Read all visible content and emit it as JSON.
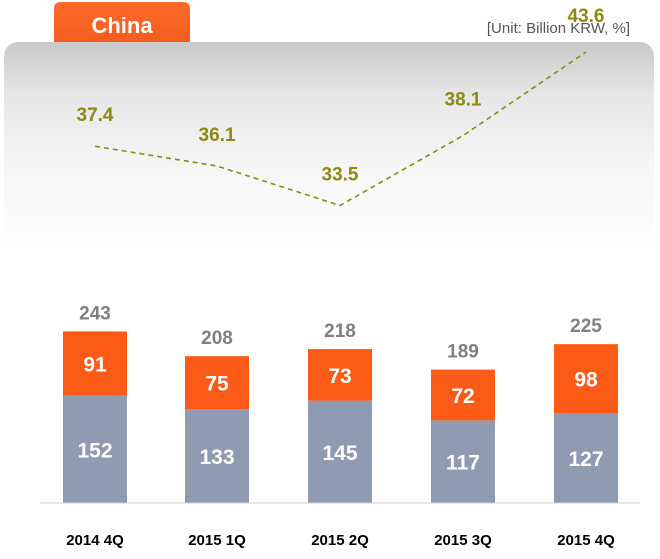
{
  "header": {
    "title": "China",
    "unit": "[Unit: Billion KRW, %]"
  },
  "colors": {
    "accent": "#f25a1a",
    "bottom_bar": "#8f9bb0",
    "top_bar": "#fb5a17",
    "ratio_line": "#8a8a12",
    "total_text": "#7f7f7f"
  },
  "chart_data": {
    "type": "bar",
    "stacked": true,
    "categories": [
      "2014 4Q",
      "2015 1Q",
      "2015 2Q",
      "2015 3Q",
      "2015 4Q"
    ],
    "series": [
      {
        "values": [
          152,
          133,
          145,
          117,
          127
        ]
      },
      {
        "values": [
          91,
          75,
          73,
          72,
          98
        ]
      }
    ],
    "totals": [
      243,
      208,
      218,
      189,
      225
    ],
    "line": {
      "style": "dashed",
      "values": [
        37.4,
        36.1,
        33.5,
        38.1,
        43.6
      ]
    },
    "title": "China",
    "xlabel": "",
    "ylabel": "",
    "ylim": [
      0,
      260
    ],
    "grid": false
  }
}
